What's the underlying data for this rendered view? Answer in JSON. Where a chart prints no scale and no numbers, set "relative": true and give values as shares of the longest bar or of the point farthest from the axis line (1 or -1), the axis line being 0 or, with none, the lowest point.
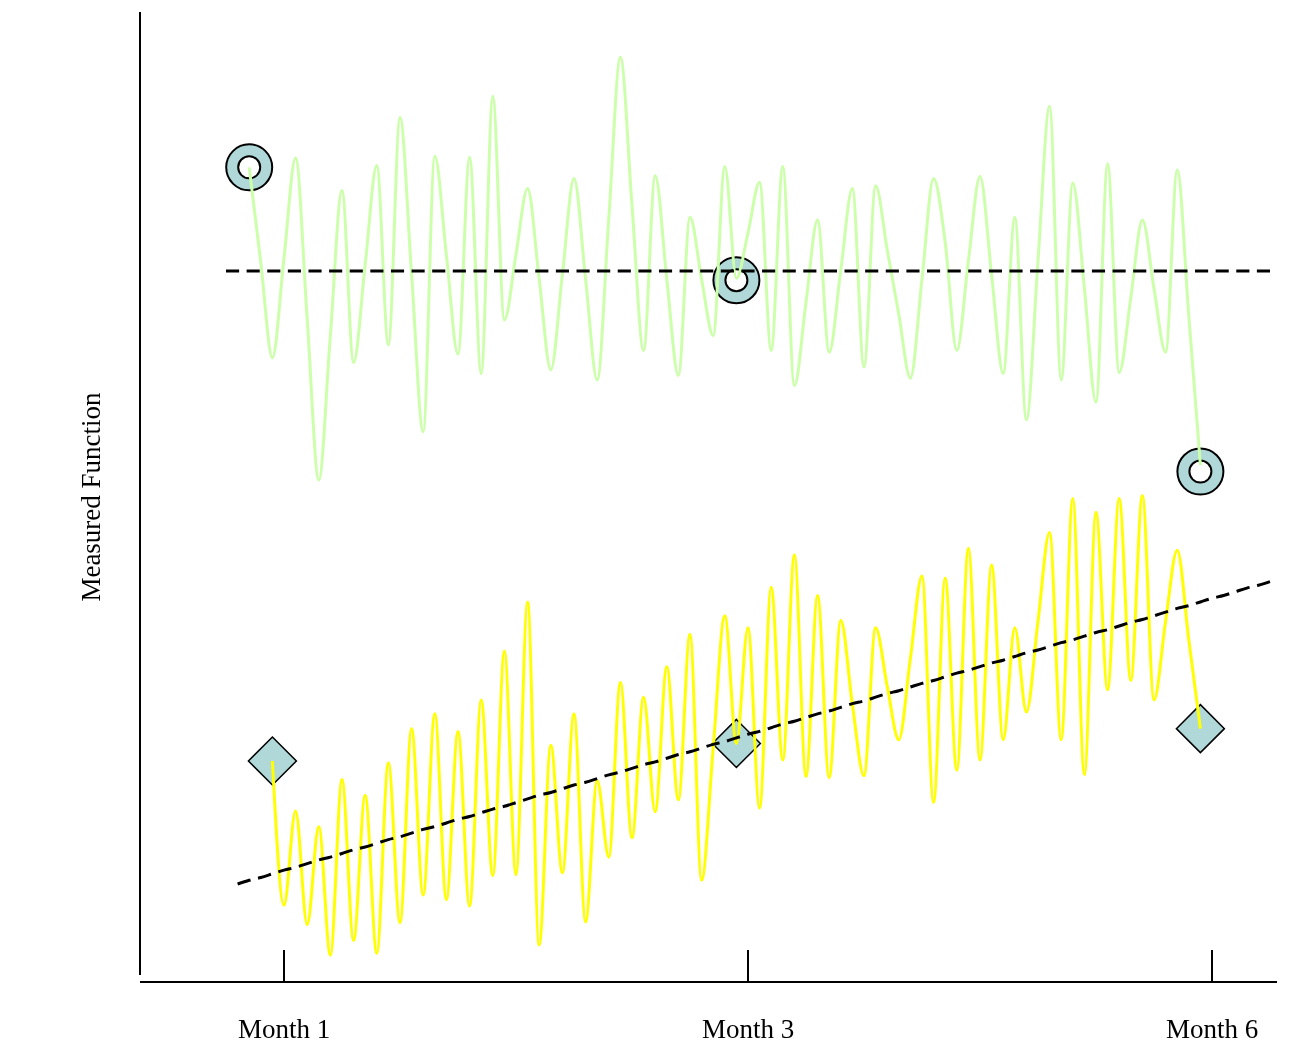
{
  "chart_data": {
    "type": "line",
    "ylabel": "Measured Function",
    "relative": true,
    "grid": false,
    "tick_labels": "x",
    "categories": [
      null,
      null,
      null,
      null,
      null,
      "Month 1",
      null,
      null,
      null,
      null,
      null,
      null,
      null,
      null,
      null,
      null,
      null,
      null,
      null,
      null,
      null,
      null,
      null,
      null,
      null,
      null,
      null,
      null,
      null,
      null,
      null,
      null,
      null,
      null,
      null,
      null,
      null,
      null,
      null,
      null,
      null,
      null,
      null,
      null,
      null,
      "Month 3",
      null,
      null,
      null,
      null,
      null,
      null,
      null,
      null,
      null,
      null,
      null,
      null,
      null,
      null,
      null,
      null,
      null,
      null,
      null,
      null,
      null,
      null,
      null,
      null,
      null,
      null,
      null,
      null,
      null,
      null,
      null,
      null,
      null,
      null,
      null,
      null,
      null,
      null,
      null,
      "Month 6",
      null,
      null,
      null,
      null,
      null
    ],
    "series": [
      {
        "color": "#ccffaa",
        "line_style": "solid",
        "values": [
          null,
          null,
          0.881,
          0.778,
          0.675,
          0.783,
          0.891,
          0.717,
          0.543,
          0.7,
          0.856,
          0.67,
          0.776,
          0.883,
          0.689,
          0.935,
          0.765,
          0.595,
          0.893,
          0.786,
          0.679,
          0.892,
          0.658,
          0.958,
          0.716,
          0.787,
          0.858,
          0.76,
          0.662,
          0.765,
          0.869,
          0.76,
          0.651,
          0.826,
          1,
          0.84,
          0.683,
          0.872,
          0.76,
          0.656,
          0.827,
          0.76,
          0.699,
          0.882,
          0.761,
          0.81,
          0.865,
          0.683,
          0.882,
          0.645,
          0.735,
          0.824,
          0.681,
          0.77,
          0.858,
          0.665,
          0.861,
          0.792,
          0.722,
          0.653,
          0.76,
          0.869,
          0.8,
          0.683,
          0.78,
          0.871,
          0.765,
          0.658,
          0.827,
          0.608,
          0.78,
          0.947,
          0.651,
          0.864,
          0.75,
          0.627,
          0.885,
          0.659,
          0.74,
          0.824,
          0.75,
          0.681,
          0.878,
          0.72,
          0.559,
          null,
          null,
          null,
          null,
          null,
          null
        ]
      },
      {
        "color": "#ffff00",
        "line_style": "solid",
        "values": [
          null,
          null,
          null,
          null,
          0.239,
          0.083,
          0.185,
          0.062,
          0.168,
          0.029,
          0.219,
          0.045,
          0.202,
          0.031,
          0.237,
          0.064,
          0.274,
          0.094,
          0.29,
          0.089,
          0.271,
          0.082,
          0.305,
          0.115,
          0.358,
          0.116,
          0.411,
          0.04,
          0.256,
          0.118,
          0.29,
          0.065,
          0.218,
          0.135,
          0.324,
          0.156,
          0.308,
          0.184,
          0.341,
          0.197,
          0.376,
          0.11,
          0.253,
          0.396,
          0.258,
          0.383,
          0.188,
          0.427,
          0.24,
          0.462,
          0.222,
          0.418,
          0.221,
          0.391,
          0.3,
          0.223,
          0.383,
          0.32,
          0.262,
          0.35,
          0.439,
          0.194,
          0.437,
          0.229,
          0.469,
          0.24,
          0.451,
          0.262,
          0.383,
          0.292,
          0.39,
          0.486,
          0.262,
          0.523,
          0.224,
          0.508,
          0.316,
          0.523,
          0.326,
          0.526,
          0.305,
          0.39,
          0.467,
          0.37,
          0.274,
          null,
          null,
          null,
          null,
          null,
          null
        ]
      },
      {
        "color": "#000000",
        "line_style": "dashed",
        "values": [
          0.769,
          0.769,
          0.769,
          0.769,
          0.769,
          0.769,
          0.769,
          0.769,
          0.769,
          0.769,
          0.769,
          0.769,
          0.769,
          0.769,
          0.769,
          0.769,
          0.769,
          0.769,
          0.769,
          0.769,
          0.769,
          0.769,
          0.769,
          0.769,
          0.769,
          0.769,
          0.769,
          0.769,
          0.769,
          0.769,
          0.769,
          0.769,
          0.769,
          0.769,
          0.769,
          0.769,
          0.769,
          0.769,
          0.769,
          0.769,
          0.769,
          0.769,
          0.769,
          0.769,
          0.769,
          0.769,
          0.769,
          0.769,
          0.769,
          0.769,
          0.769,
          0.769,
          0.769,
          0.769,
          0.769,
          0.769,
          0.769,
          0.769,
          0.769,
          0.769,
          0.769,
          0.769,
          0.769,
          0.769,
          0.769,
          0.769,
          0.769,
          0.769,
          0.769,
          0.769,
          0.769,
          0.769,
          0.769,
          0.769,
          0.769,
          0.769,
          0.769,
          0.769,
          0.769,
          0.769,
          0.769,
          0.769,
          0.769,
          0.769,
          0.769,
          0.769,
          0.769,
          0.769,
          0.769,
          0.769,
          0.769
        ]
      },
      {
        "color": "#000000",
        "line_style": "dashed",
        "values": [
          null,
          0.106,
          0.11,
          0.113,
          0.117,
          0.121,
          0.124,
          0.128,
          0.132,
          0.135,
          0.139,
          0.143,
          0.146,
          0.15,
          0.154,
          0.157,
          0.161,
          0.165,
          0.168,
          0.172,
          0.176,
          0.179,
          0.183,
          0.187,
          0.19,
          0.194,
          0.198,
          0.202,
          0.205,
          0.209,
          0.213,
          0.216,
          0.22,
          0.224,
          0.227,
          0.231,
          0.235,
          0.238,
          0.242,
          0.246,
          0.249,
          0.253,
          0.257,
          0.26,
          0.264,
          0.268,
          0.271,
          0.275,
          0.279,
          0.282,
          0.286,
          0.29,
          0.293,
          0.297,
          0.301,
          0.304,
          0.308,
          0.312,
          0.315,
          0.319,
          0.323,
          0.326,
          0.33,
          0.334,
          0.337,
          0.341,
          0.345,
          0.348,
          0.352,
          0.356,
          0.359,
          0.363,
          0.367,
          0.37,
          0.374,
          0.378,
          0.381,
          0.385,
          0.389,
          0.392,
          0.396,
          0.4,
          0.404,
          0.407,
          0.411,
          0.415,
          0.418,
          0.422,
          0.426,
          0.429,
          0.433
        ]
      },
      {
        "type": "scatter",
        "color": "#b0d8d8",
        "marker": "circle",
        "values": [
          null,
          null,
          0.881,
          null,
          null,
          null,
          null,
          null,
          null,
          null,
          null,
          null,
          null,
          null,
          null,
          null,
          null,
          null,
          null,
          null,
          null,
          null,
          null,
          null,
          null,
          null,
          null,
          null,
          null,
          null,
          null,
          null,
          null,
          null,
          null,
          null,
          null,
          null,
          null,
          null,
          null,
          null,
          null,
          null,
          0.759,
          null,
          null,
          null,
          null,
          null,
          null,
          null,
          null,
          null,
          null,
          null,
          null,
          null,
          null,
          null,
          null,
          null,
          null,
          null,
          null,
          null,
          null,
          null,
          null,
          null,
          null,
          null,
          null,
          null,
          null,
          null,
          null,
          null,
          null,
          null,
          null,
          null,
          null,
          null,
          0.552,
          null,
          null,
          null,
          null,
          null,
          null
        ]
      },
      {
        "type": "scatter",
        "color": "#b0d8d8",
        "marker": "diamond",
        "values": [
          null,
          null,
          null,
          null,
          0.239,
          null,
          null,
          null,
          null,
          null,
          null,
          null,
          null,
          null,
          null,
          null,
          null,
          null,
          null,
          null,
          null,
          null,
          null,
          null,
          null,
          null,
          null,
          null,
          null,
          null,
          null,
          null,
          null,
          null,
          null,
          null,
          null,
          null,
          null,
          null,
          null,
          null,
          null,
          null,
          0.258,
          null,
          null,
          null,
          null,
          null,
          null,
          null,
          null,
          null,
          null,
          null,
          null,
          null,
          null,
          null,
          null,
          null,
          null,
          null,
          null,
          null,
          null,
          null,
          null,
          null,
          null,
          null,
          null,
          null,
          null,
          null,
          null,
          null,
          null,
          null,
          null,
          null,
          null,
          null,
          0.274,
          null,
          null,
          null,
          null,
          null,
          null
        ]
      }
    ]
  }
}
